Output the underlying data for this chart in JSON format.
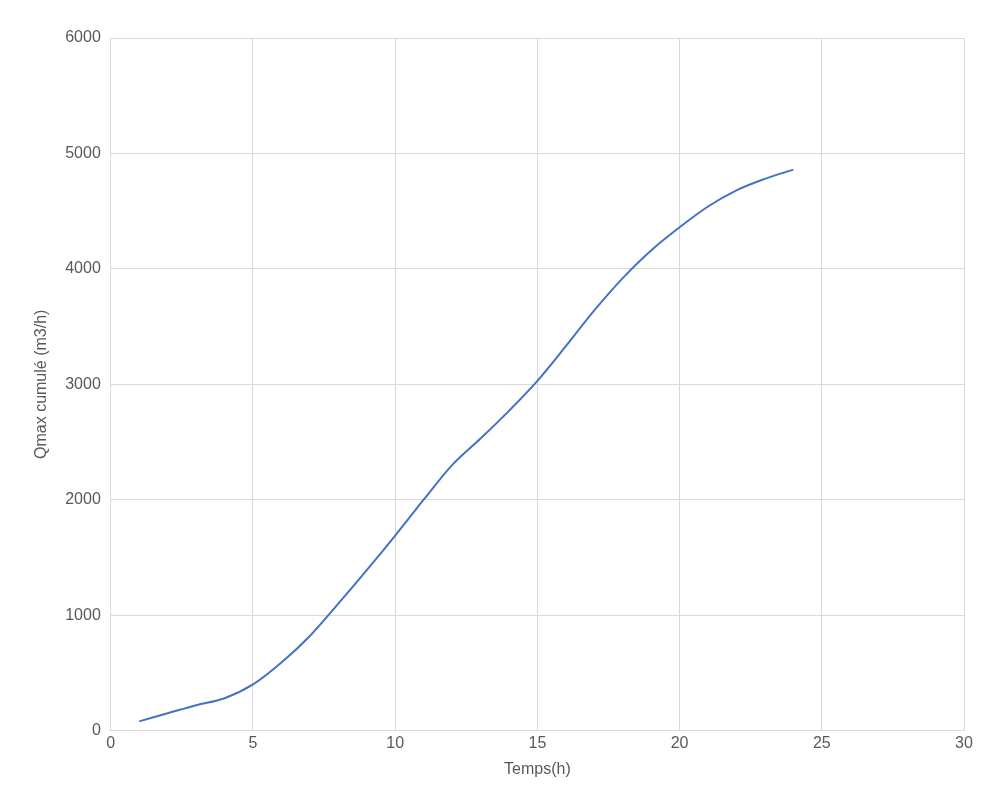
{
  "chart_data": {
    "type": "line",
    "xlabel": "Temps(h)",
    "ylabel": "Qmax cumulé (m3/h)",
    "x": [
      1,
      2,
      3,
      4,
      5,
      6,
      7,
      8,
      9,
      10,
      11,
      12,
      13,
      14,
      15,
      16,
      17,
      18,
      19,
      20,
      21,
      22,
      23,
      24
    ],
    "series": [
      {
        "color": "#4472c4",
        "values": [
          80,
          150,
          220,
          280,
          400,
          590,
          820,
          1100,
          1390,
          1690,
          2000,
          2300,
          2530,
          2770,
          3030,
          3330,
          3640,
          3920,
          4160,
          4360,
          4540,
          4680,
          4780,
          4860
        ]
      }
    ],
    "xlim": [
      0,
      30
    ],
    "xticks": [
      0,
      5,
      10,
      15,
      20,
      25,
      30
    ],
    "ylim": [
      0,
      6000
    ],
    "yticks": [
      0,
      1000,
      2000,
      3000,
      4000,
      5000,
      6000
    ],
    "grid": true,
    "marker": "none",
    "line_style": "solid",
    "legend": false
  }
}
